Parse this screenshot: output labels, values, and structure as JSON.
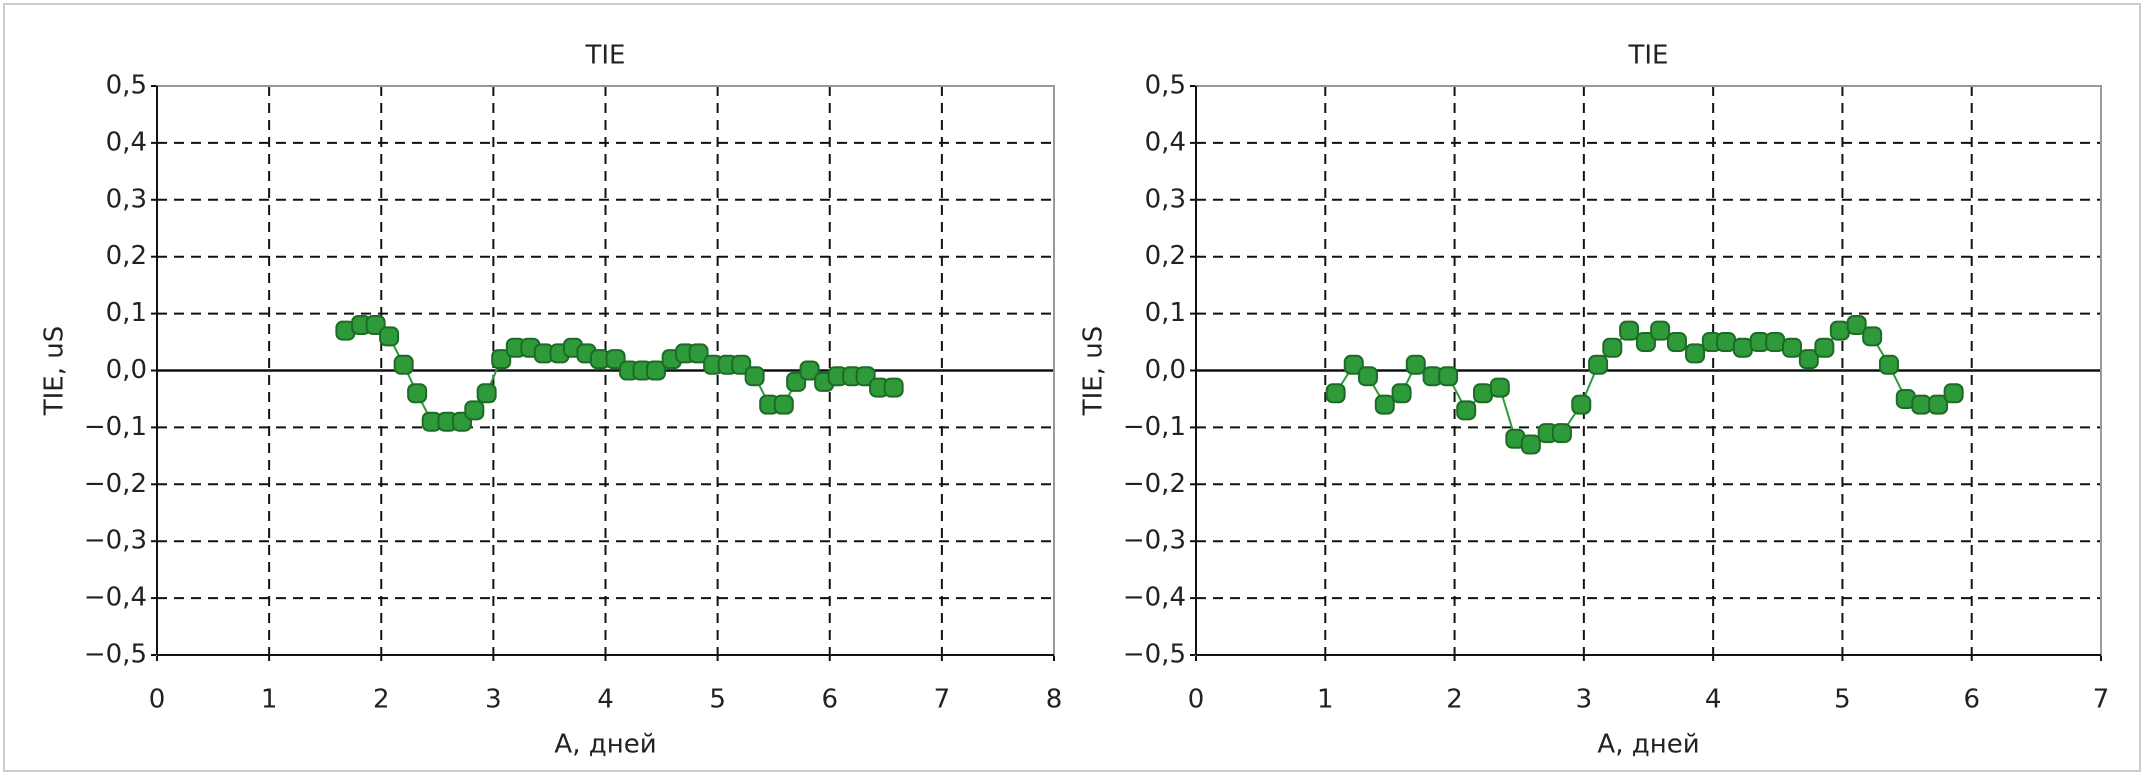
{
  "chart_data": [
    {
      "type": "line",
      "title": "TIE",
      "xlabel": "A, дней",
      "ylabel": "TIE, uS",
      "color": "#2f9a3a",
      "xlim": [
        0,
        8
      ],
      "xticks": [
        0,
        1,
        2,
        3,
        4,
        5,
        6,
        7,
        8
      ],
      "ylim": [
        -0.5,
        0.5
      ],
      "yticks": [
        {
          "value": -0.5,
          "label": "−0,5"
        },
        {
          "value": -0.4,
          "label": "−0,4"
        },
        {
          "value": -0.3,
          "label": "−0,3"
        },
        {
          "value": -0.2,
          "label": "−0,2"
        },
        {
          "value": -0.1,
          "label": "−0,1"
        },
        {
          "value": 0,
          "label": "0,0"
        },
        {
          "value": 0.1,
          "label": "0,1"
        },
        {
          "value": 0.2,
          "label": "0,2"
        },
        {
          "value": 0.3,
          "label": "0,3"
        },
        {
          "value": 0.4,
          "label": "0,4"
        },
        {
          "value": 0.5,
          "label": "0,5"
        }
      ],
      "grid": true,
      "x": [
        1.68,
        1.82,
        1.95,
        2.07,
        2.2,
        2.32,
        2.45,
        2.59,
        2.72,
        2.83,
        2.94,
        3.07,
        3.2,
        3.33,
        3.45,
        3.59,
        3.71,
        3.83,
        3.95,
        4.09,
        4.21,
        4.33,
        4.45,
        4.59,
        4.71,
        4.83,
        4.96,
        5.09,
        5.21,
        5.33,
        5.46,
        5.59,
        5.7,
        5.82,
        5.95,
        6.07,
        6.2,
        6.32,
        6.44,
        6.57
      ],
      "values": [
        0.07,
        0.08,
        0.08,
        0.06,
        0.01,
        -0.04,
        -0.09,
        -0.09,
        -0.09,
        -0.07,
        -0.04,
        0.02,
        0.04,
        0.04,
        0.03,
        0.03,
        0.04,
        0.03,
        0.02,
        0.02,
        0.0,
        0.0,
        0.0,
        0.02,
        0.03,
        0.03,
        0.01,
        0.01,
        0.01,
        -0.01,
        -0.06,
        -0.06,
        -0.02,
        0.0,
        -0.02,
        -0.01,
        -0.01,
        -0.01,
        -0.03,
        -0.03
      ]
    },
    {
      "type": "line",
      "title": "TIE",
      "xlabel": "A, дней",
      "ylabel": "TIE, uS",
      "color": "#2f9a3a",
      "xlim": [
        0,
        7
      ],
      "xticks": [
        0,
        1,
        2,
        3,
        4,
        5,
        6,
        7
      ],
      "ylim": [
        -0.5,
        0.5
      ],
      "yticks": [
        {
          "value": -0.5,
          "label": "−0,5"
        },
        {
          "value": -0.4,
          "label": "−0,4"
        },
        {
          "value": -0.3,
          "label": "−0,3"
        },
        {
          "value": -0.2,
          "label": "−0,2"
        },
        {
          "value": -0.1,
          "label": "−0,1"
        },
        {
          "value": 0,
          "label": "0,0"
        },
        {
          "value": 0.1,
          "label": "0,1"
        },
        {
          "value": 0.2,
          "label": "0,2"
        },
        {
          "value": 0.3,
          "label": "0,3"
        },
        {
          "value": 0.4,
          "label": "0,4"
        },
        {
          "value": 0.5,
          "label": "0,5"
        }
      ],
      "grid": true,
      "x": [
        1.08,
        1.22,
        1.33,
        1.46,
        1.59,
        1.7,
        1.83,
        1.95,
        2.09,
        2.22,
        2.35,
        2.47,
        2.59,
        2.72,
        2.83,
        2.98,
        3.11,
        3.22,
        3.35,
        3.48,
        3.59,
        3.72,
        3.86,
        3.99,
        4.1,
        4.23,
        4.36,
        4.48,
        4.61,
        4.74,
        4.86,
        4.98,
        5.11,
        5.23,
        5.36,
        5.49,
        5.61,
        5.74,
        5.86
      ],
      "values": [
        -0.04,
        0.01,
        -0.01,
        -0.06,
        -0.04,
        0.01,
        -0.01,
        -0.01,
        -0.07,
        -0.04,
        -0.03,
        -0.12,
        -0.13,
        -0.11,
        -0.11,
        -0.06,
        0.01,
        0.04,
        0.07,
        0.05,
        0.07,
        0.05,
        0.03,
        0.05,
        0.05,
        0.04,
        0.05,
        0.05,
        0.04,
        0.02,
        0.04,
        0.07,
        0.08,
        0.06,
        0.01,
        -0.05,
        -0.06,
        -0.06,
        -0.04
      ]
    }
  ]
}
